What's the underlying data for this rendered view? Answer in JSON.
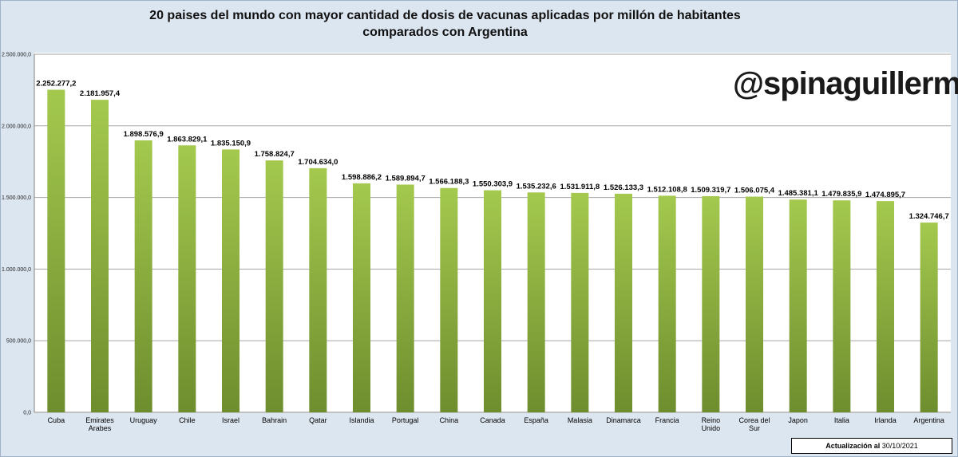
{
  "header": {
    "title_line1": "20 paises del mundo con mayor cantidad de dosis de vacunas aplicadas por millón de habitantes",
    "title_line2": "comparados con Argentina"
  },
  "watermark": "@spinaguillermo",
  "update": {
    "label": "Actualización al",
    "date": "30/10/2021"
  },
  "colors": {
    "bar_light": "#a4c94e",
    "bar_dark": "#6e8d2e",
    "background": "#dce6f1",
    "gridline": "#a6a6a6"
  },
  "chart_data": {
    "type": "bar",
    "title": "20 paises del mundo con mayor cantidad de dosis de vacunas aplicadas por millón de habitantes comparados con Argentina",
    "xlabel": "",
    "ylabel": "",
    "ylim": [
      0,
      2500000
    ],
    "yticks": [
      0,
      500000,
      1000000,
      1500000,
      2000000,
      2500000
    ],
    "ytick_labels": [
      "0,0",
      "500.000,0",
      "1.000.000,0",
      "1.500.000,0",
      "2.000.000,0",
      "2.500.000,0"
    ],
    "grid": true,
    "categories": [
      [
        "Cuba"
      ],
      [
        "Emirates",
        "Arabes"
      ],
      [
        "Uruguay"
      ],
      [
        "Chile"
      ],
      [
        "Israel"
      ],
      [
        "Bahrain"
      ],
      [
        "Qatar"
      ],
      [
        "Islandia"
      ],
      [
        "Portugal"
      ],
      [
        "China"
      ],
      [
        "Canada"
      ],
      [
        "España"
      ],
      [
        "Malasia"
      ],
      [
        "Dinamarca"
      ],
      [
        "Francia"
      ],
      [
        "Reino",
        "Unido"
      ],
      [
        "Corea del",
        "Sur"
      ],
      [
        "Japon"
      ],
      [
        "Italia"
      ],
      [
        "Irlanda"
      ],
      [
        "Argentina"
      ]
    ],
    "values": [
      2252277.2,
      2181957.4,
      1898576.9,
      1863829.1,
      1835150.9,
      1758824.7,
      1704634.0,
      1598886.2,
      1589894.7,
      1566188.3,
      1550303.9,
      1535232.6,
      1531911.8,
      1526133.3,
      1512108.8,
      1509319.7,
      1506075.4,
      1485381.1,
      1479835.9,
      1474895.7,
      1324746.7
    ],
    "value_labels": [
      "2.252.277,2",
      "2.181.957,4",
      "1.898.576,9",
      "1.863.829,1",
      "1.835.150,9",
      "1.758.824,7",
      "1.704.634,0",
      "1.598.886,2",
      "1.589.894,7",
      "1.566.188,3",
      "1.550.303,9",
      "1.535.232,6",
      "1.531.911,8",
      "1.526.133,3",
      "1.512.108,8",
      "1.509.319,7",
      "1.506.075,4",
      "1.485.381,1",
      "1.479.835,9",
      "1.474.895,7",
      "1.324.746,7"
    ]
  }
}
